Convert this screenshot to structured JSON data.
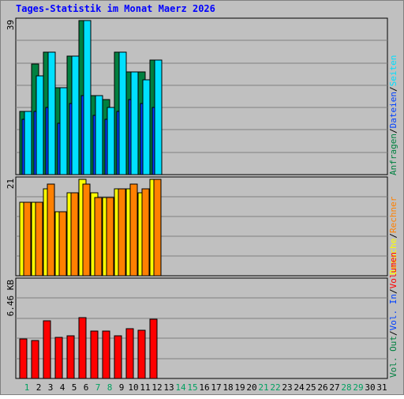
{
  "chart_data": {
    "type": "bar",
    "title": "Tages-Statistik im Monat Maerz 2026",
    "days": [
      "1",
      "2",
      "3",
      "4",
      "5",
      "6",
      "7",
      "8",
      "9",
      "10",
      "11",
      "12",
      "13",
      "14",
      "15",
      "16",
      "17",
      "18",
      "19",
      "20",
      "21",
      "22",
      "23",
      "24",
      "25",
      "26",
      "27",
      "28",
      "29",
      "30",
      "31"
    ],
    "weekend_days": [
      1,
      7,
      8,
      14,
      15,
      21,
      22,
      28,
      29
    ],
    "panels": [
      {
        "name": "hits",
        "max_label": "39",
        "ymax": 39,
        "series": [
          {
            "name": "Anfragen",
            "color": "#008040",
            "values": [
              16,
              28,
              31,
              22,
              30,
              39,
              20,
              19,
              31,
              26,
              26,
              29,
              0,
              0,
              0,
              0,
              0,
              0,
              0,
              0,
              0,
              0,
              0,
              0,
              0,
              0,
              0,
              0,
              0,
              0,
              0
            ]
          },
          {
            "name": "Dateien",
            "color": "#0040ff",
            "values": [
              14,
              16,
              17,
              13,
              18,
              20,
              15,
              14,
              16,
              19,
              18,
              17,
              0,
              0,
              0,
              0,
              0,
              0,
              0,
              0,
              0,
              0,
              0,
              0,
              0,
              0,
              0,
              0,
              0,
              0,
              0
            ]
          },
          {
            "name": "Seiten",
            "color": "#00e0ff",
            "values": [
              16,
              25,
              31,
              22,
              30,
              39,
              20,
              17,
              31,
              26,
              24,
              29,
              0,
              0,
              0,
              0,
              0,
              0,
              0,
              0,
              0,
              0,
              0,
              0,
              0,
              0,
              0,
              0,
              0,
              0,
              0
            ]
          }
        ]
      },
      {
        "name": "visits",
        "max_label": "21",
        "ymax": 21,
        "series": [
          {
            "name": "Besuche",
            "color": "#ffff00",
            "values": [
              16,
              16,
              19,
              14,
              18,
              21,
              18,
              17,
              19,
              19,
              18,
              21,
              0,
              0,
              0,
              0,
              0,
              0,
              0,
              0,
              0,
              0,
              0,
              0,
              0,
              0,
              0,
              0,
              0,
              0,
              0
            ]
          },
          {
            "name": "Rechner",
            "color": "#ff8000",
            "values": [
              16,
              16,
              20,
              14,
              18,
              20,
              17,
              17,
              19,
              20,
              19,
              21,
              0,
              0,
              0,
              0,
              0,
              0,
              0,
              0,
              0,
              0,
              0,
              0,
              0,
              0,
              0,
              0,
              0,
              0,
              0
            ]
          }
        ]
      },
      {
        "name": "volume",
        "max_label": "6.46 KB",
        "ymax": 6.46,
        "series": [
          {
            "name": "Volumen",
            "color": "#ff0000",
            "values": [
              2.6,
              2.5,
              3.8,
              2.7,
              2.8,
              4.0,
              3.1,
              3.1,
              2.8,
              3.3,
              3.2,
              3.9,
              0,
              0,
              0,
              0,
              0,
              0,
              0,
              0,
              0,
              0,
              0,
              0,
              0,
              0,
              0,
              0,
              0,
              0,
              0
            ]
          }
        ]
      }
    ],
    "legend_top": [
      {
        "text": "Anfragen",
        "color": "#008040"
      },
      {
        "text": "Dateien",
        "color": "#0040ff"
      },
      {
        "text": "Seiten",
        "color": "#00e0ff"
      }
    ],
    "legend_middle": [
      {
        "text": "Besuche",
        "color": "#ffff00"
      },
      {
        "text": "Rechner",
        "color": "#ff8000"
      }
    ],
    "legend_bottom": [
      {
        "text": "Vol. Out",
        "color": "#008040"
      },
      {
        "text": "Vol. In",
        "color": "#0040ff"
      },
      {
        "text": "Volumen",
        "color": "#ff0000"
      }
    ],
    "legend_separator": "/",
    "grid": true
  }
}
